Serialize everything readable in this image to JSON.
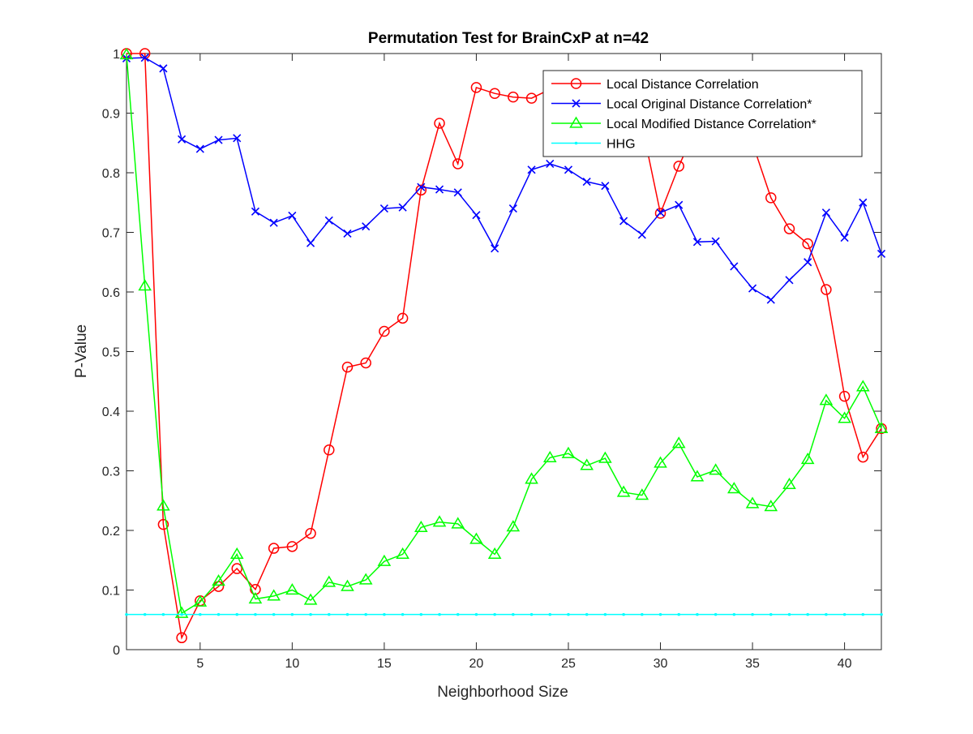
{
  "chart_data": {
    "type": "line",
    "title": "Permutation Test for BrainCxP at n=42",
    "xlabel": "Neighborhood Size",
    "ylabel": "P-Value",
    "xlim": [
      1,
      42
    ],
    "ylim": [
      0,
      1
    ],
    "xticks": [
      5,
      10,
      15,
      20,
      25,
      30,
      35,
      40
    ],
    "xtick_labels": [
      "5",
      "10",
      "15",
      "20",
      "25",
      "30",
      "35",
      "40"
    ],
    "yticks": [
      0,
      0.1,
      0.2,
      0.3,
      0.4,
      0.5,
      0.6,
      0.7,
      0.8,
      0.9,
      1
    ],
    "ytick_labels": [
      "0",
      "0.1",
      "0.2",
      "0.3",
      "0.4",
      "0.5",
      "0.6",
      "0.7",
      "0.8",
      "0.9",
      "1"
    ],
    "grid": false,
    "legend_position": "top-right",
    "x": [
      1,
      2,
      3,
      4,
      5,
      6,
      7,
      8,
      9,
      10,
      11,
      12,
      13,
      14,
      15,
      16,
      17,
      18,
      19,
      20,
      21,
      22,
      23,
      24,
      25,
      26,
      27,
      28,
      29,
      30,
      31,
      32,
      33,
      34,
      35,
      36,
      37,
      38,
      39,
      40,
      41,
      42
    ],
    "series": [
      {
        "name": "Local Distance Correlation",
        "color": "#ff0000",
        "marker": "circle",
        "values": [
          1.0,
          1.0,
          0.21,
          0.02,
          0.082,
          0.106,
          0.136,
          0.101,
          0.17,
          0.173,
          0.195,
          0.335,
          0.474,
          0.481,
          0.534,
          0.556,
          0.771,
          0.883,
          0.815,
          0.943,
          0.933,
          0.927,
          0.925,
          0.94,
          0.95,
          0.94,
          0.93,
          0.92,
          0.88,
          0.732,
          0.811,
          0.88,
          0.9,
          0.9,
          0.85,
          0.758,
          0.706,
          0.681,
          0.604,
          0.425,
          0.323,
          0.371
        ]
      },
      {
        "name": "Local Original Distance Correlation*",
        "color": "#0000ff",
        "marker": "x",
        "values": [
          0.992,
          0.993,
          0.975,
          0.856,
          0.84,
          0.855,
          0.858,
          0.735,
          0.716,
          0.728,
          0.682,
          0.72,
          0.698,
          0.71,
          0.74,
          0.742,
          0.776,
          0.772,
          0.767,
          0.729,
          0.673,
          0.74,
          0.805,
          0.815,
          0.805,
          0.785,
          0.778,
          0.719,
          0.696,
          0.733,
          0.746,
          0.684,
          0.685,
          0.643,
          0.606,
          0.587,
          0.62,
          0.65,
          0.733,
          0.691,
          0.75,
          0.664
        ]
      },
      {
        "name": "Local  Modified Distance Correlation*",
        "color": "#00ff00",
        "marker": "triangle",
        "values": [
          0.998,
          0.61,
          0.241,
          0.061,
          0.08,
          0.115,
          0.16,
          0.085,
          0.09,
          0.1,
          0.083,
          0.113,
          0.106,
          0.117,
          0.148,
          0.16,
          0.205,
          0.214,
          0.211,
          0.185,
          0.16,
          0.206,
          0.286,
          0.322,
          0.329,
          0.309,
          0.321,
          0.264,
          0.259,
          0.313,
          0.346,
          0.29,
          0.301,
          0.27,
          0.245,
          0.24,
          0.277,
          0.319,
          0.418,
          0.388,
          0.441,
          0.371
        ]
      },
      {
        "name": "HHG",
        "color": "#00ffff",
        "marker": "point",
        "values": [
          0.059,
          0.059,
          0.059,
          0.059,
          0.059,
          0.059,
          0.059,
          0.059,
          0.059,
          0.059,
          0.059,
          0.059,
          0.059,
          0.059,
          0.059,
          0.059,
          0.059,
          0.059,
          0.059,
          0.059,
          0.059,
          0.059,
          0.059,
          0.059,
          0.059,
          0.059,
          0.059,
          0.059,
          0.059,
          0.059,
          0.059,
          0.059,
          0.059,
          0.059,
          0.059,
          0.059,
          0.059,
          0.059,
          0.059,
          0.059,
          0.059,
          0.059
        ]
      }
    ]
  }
}
